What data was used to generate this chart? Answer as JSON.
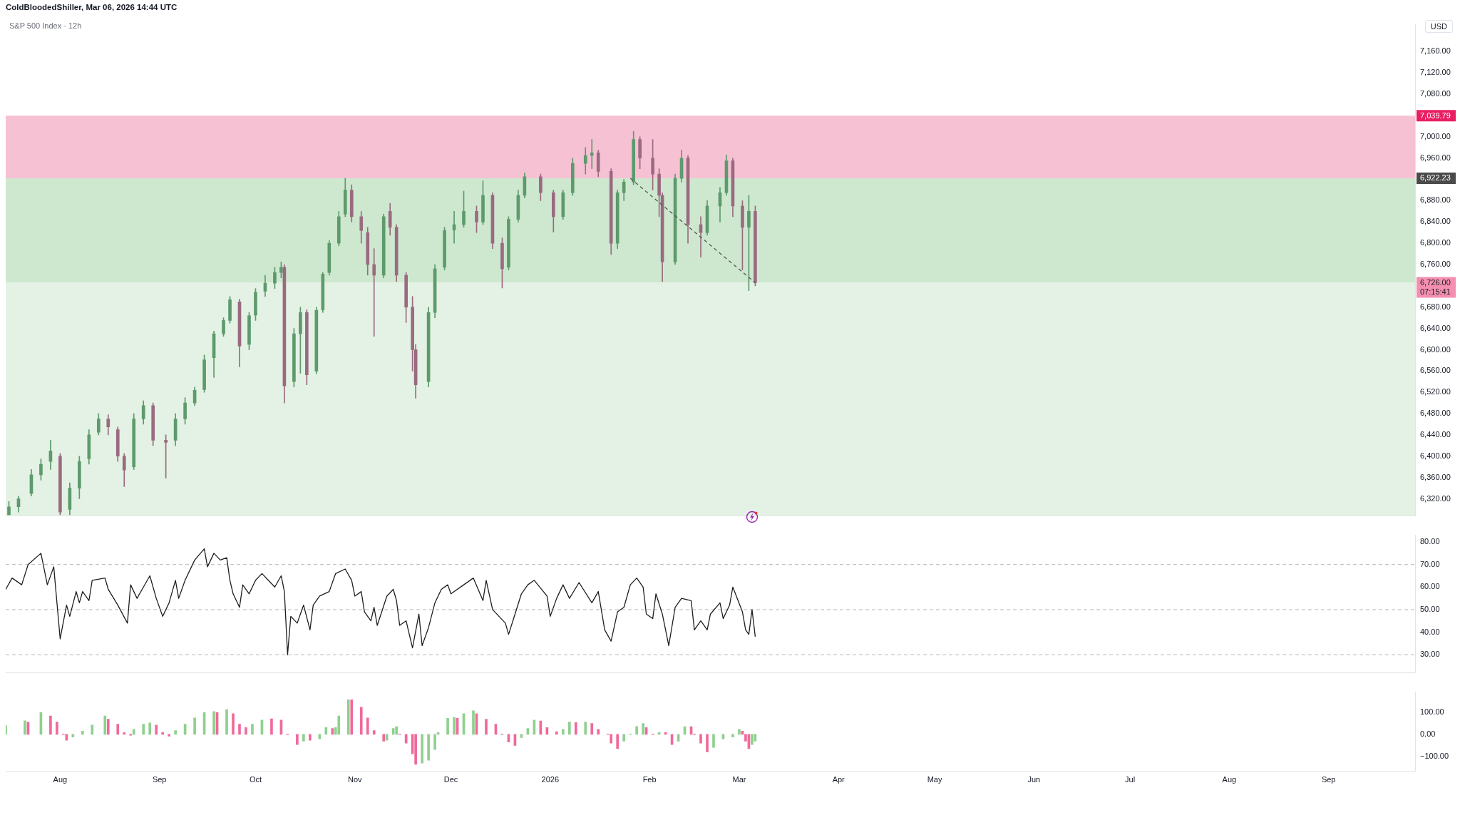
{
  "chart_data": [
    {
      "type": "candlestick",
      "subtitle": "S&P 500 Index · 12h",
      "ylabel": "USD",
      "annotations": [
        "ColdBloodedShiller, Mar 06, 2026 14:44 UTC"
      ],
      "x": [
        "2025-07-16",
        "2025-07-19",
        "2025-07-23",
        "2025-07-26",
        "2025-07-29",
        "2025-08-01",
        "2025-08-04",
        "2025-08-07",
        "2025-08-10",
        "2025-08-13",
        "2025-08-16",
        "2025-08-19",
        "2025-08-21",
        "2025-08-24",
        "2025-08-27",
        "2025-08-30",
        "2025-09-03",
        "2025-09-06",
        "2025-09-09",
        "2025-09-12",
        "2025-09-15",
        "2025-09-18",
        "2025-09-21",
        "2025-09-23",
        "2025-09-26",
        "2025-09-29",
        "2025-10-01",
        "2025-10-04",
        "2025-10-07",
        "2025-10-09",
        "2025-10-10",
        "2025-10-13",
        "2025-10-15",
        "2025-10-17",
        "2025-10-20",
        "2025-10-22",
        "2025-10-24",
        "2025-10-27",
        "2025-10-29",
        "2025-10-31",
        "2025-11-03",
        "2025-11-05",
        "2025-11-07",
        "2025-11-10",
        "2025-11-12",
        "2025-11-14",
        "2025-11-17",
        "2025-11-19",
        "2025-11-20",
        "2025-11-24",
        "2025-11-26",
        "2025-11-29",
        "2025-12-02",
        "2025-12-05",
        "2025-12-09",
        "2025-12-11",
        "2025-12-14",
        "2025-12-17",
        "2025-12-19",
        "2025-12-22",
        "2025-12-24",
        "2025-12-29",
        "2026-01-02",
        "2026-01-05",
        "2026-01-08",
        "2026-01-12",
        "2026-01-14",
        "2026-01-16",
        "2026-01-20",
        "2026-01-22",
        "2026-01-24",
        "2026-01-27",
        "2026-01-29",
        "2026-02-02",
        "2026-02-04",
        "2026-02-05",
        "2026-02-09",
        "2026-02-11",
        "2026-02-13",
        "2026-02-17",
        "2026-02-19",
        "2026-02-23",
        "2026-02-25",
        "2026-02-27",
        "2026-03-02",
        "2026-03-04",
        "2026-03-06"
      ],
      "ohlc": [
        [
          6290,
          6315,
          6290,
          6305
        ],
        [
          6305,
          6325,
          6295,
          6320
        ],
        [
          6330,
          6375,
          6325,
          6365
        ],
        [
          6365,
          6395,
          6355,
          6385
        ],
        [
          6390,
          6430,
          6375,
          6410
        ],
        [
          6400,
          6405,
          6290,
          6295
        ],
        [
          6300,
          6350,
          6290,
          6340
        ],
        [
          6340,
          6400,
          6320,
          6390
        ],
        [
          6395,
          6450,
          6385,
          6440
        ],
        [
          6445,
          6480,
          6440,
          6470
        ],
        [
          6470,
          6478,
          6440,
          6455
        ],
        [
          6450,
          6455,
          6390,
          6400
        ],
        [
          6400,
          6405,
          6343,
          6374
        ],
        [
          6380,
          6480,
          6375,
          6470
        ],
        [
          6470,
          6504,
          6460,
          6495
        ],
        [
          6495,
          6500,
          6420,
          6430
        ],
        [
          6430,
          6440,
          6359,
          6426
        ],
        [
          6430,
          6480,
          6420,
          6470
        ],
        [
          6470,
          6510,
          6460,
          6500
        ],
        [
          6500,
          6530,
          6495,
          6524
        ],
        [
          6525,
          6590,
          6520,
          6581
        ],
        [
          6585,
          6635,
          6548,
          6630
        ],
        [
          6630,
          6660,
          6625,
          6655
        ],
        [
          6655,
          6700,
          6650,
          6694
        ],
        [
          6690,
          6695,
          6568,
          6607
        ],
        [
          6610,
          6670,
          6600,
          6664
        ],
        [
          6665,
          6715,
          6655,
          6708
        ],
        [
          6710,
          6740,
          6700,
          6725
        ],
        [
          6725,
          6755,
          6715,
          6745
        ],
        [
          6745,
          6765,
          6735,
          6755
        ],
        [
          6755,
          6760,
          6500,
          6532
        ],
        [
          6540,
          6640,
          6530,
          6630
        ],
        [
          6630,
          6680,
          6556,
          6670
        ],
        [
          6670,
          6675,
          6534,
          6553
        ],
        [
          6560,
          6680,
          6555,
          6674
        ],
        [
          6675,
          6745,
          6670,
          6742
        ],
        [
          6745,
          6805,
          6740,
          6800
        ],
        [
          6800,
          6860,
          6795,
          6850
        ],
        [
          6855,
          6922,
          6850,
          6900
        ],
        [
          6900,
          6910,
          6840,
          6850
        ],
        [
          6850,
          6860,
          6800,
          6824
        ],
        [
          6820,
          6830,
          6740,
          6760
        ],
        [
          6760,
          6790,
          6625,
          6740
        ],
        [
          6740,
          6855,
          6735,
          6850
        ],
        [
          6860,
          6875,
          6815,
          6830
        ],
        [
          6830,
          6835,
          6728,
          6740
        ],
        [
          6740,
          6745,
          6651,
          6680
        ],
        [
          6680,
          6700,
          6560,
          6600
        ],
        [
          6600,
          6610,
          6509,
          6534
        ],
        [
          6540,
          6680,
          6530,
          6670
        ],
        [
          6670,
          6760,
          6660,
          6752
        ],
        [
          6755,
          6830,
          6750,
          6824
        ],
        [
          6825,
          6860,
          6800,
          6835
        ],
        [
          6835,
          6898,
          6830,
          6860
        ],
        [
          6860,
          6870,
          6820,
          6840
        ],
        [
          6840,
          6917,
          6835,
          6890
        ],
        [
          6890,
          6895,
          6790,
          6800
        ],
        [
          6800,
          6810,
          6716,
          6752
        ],
        [
          6755,
          6850,
          6750,
          6845
        ],
        [
          6845,
          6900,
          6840,
          6890
        ],
        [
          6890,
          6932,
          6885,
          6925
        ],
        [
          6925,
          6930,
          6880,
          6895
        ],
        [
          6895,
          6900,
          6821,
          6850
        ],
        [
          6850,
          6900,
          6845,
          6895
        ],
        [
          6895,
          6960,
          6890,
          6950
        ],
        [
          6950,
          6980,
          6930,
          6965
        ],
        [
          6965,
          6995,
          6940,
          6970
        ],
        [
          6970,
          6975,
          6925,
          6935
        ],
        [
          6935,
          6940,
          6779,
          6800
        ],
        [
          6800,
          6900,
          6790,
          6895
        ],
        [
          6895,
          6920,
          6880,
          6915
        ],
        [
          6915,
          7010,
          6910,
          6995
        ],
        [
          6995,
          7000,
          6940,
          6960
        ],
        [
          6960,
          6995,
          6900,
          6930
        ],
        [
          6930,
          6940,
          6850,
          6890
        ],
        [
          6890,
          6895,
          6728,
          6765
        ],
        [
          6765,
          6930,
          6760,
          6922
        ],
        [
          6922,
          6975,
          6915,
          6960
        ],
        [
          6960,
          6965,
          6800,
          6835
        ],
        [
          6835,
          6850,
          6774,
          6820
        ],
        [
          6820,
          6880,
          6815,
          6870
        ],
        [
          6870,
          6905,
          6840,
          6895
        ],
        [
          6895,
          6966,
          6890,
          6955
        ],
        [
          6955,
          6960,
          6850,
          6870
        ],
        [
          6870,
          6880,
          6750,
          6830
        ],
        [
          6830,
          6890,
          6711,
          6860
        ],
        [
          6860,
          6870,
          6720,
          6726
        ]
      ],
      "colors": [
        "#5d9a6c",
        "#5d9a6c",
        "#5d9a6c",
        "#5d9a6c",
        "#5d9a6c",
        "#9a6a80",
        "#5d9a6c",
        "#5d9a6c",
        "#5d9a6c",
        "#5d9a6c",
        "#9a6a80",
        "#9a6a80",
        "#9a6a80",
        "#5d9a6c",
        "#5d9a6c",
        "#9a6a80",
        "#9a6a80",
        "#5d9a6c",
        "#5d9a6c",
        "#5d9a6c",
        "#5d9a6c",
        "#5d9a6c",
        "#5d9a6c",
        "#5d9a6c",
        "#9a6a80",
        "#5d9a6c",
        "#5d9a6c",
        "#5d9a6c",
        "#5d9a6c",
        "#5d9a6c",
        "#9a6a80",
        "#5d9a6c",
        "#5d9a6c",
        "#9a6a80",
        "#5d9a6c",
        "#5d9a6c",
        "#5d9a6c",
        "#5d9a6c",
        "#5d9a6c",
        "#9a6a80",
        "#9a6a80",
        "#9a6a80",
        "#9a6a80",
        "#5d9a6c",
        "#9a6a80",
        "#9a6a80",
        "#9a6a80",
        "#9a6a80",
        "#9a6a80",
        "#5d9a6c",
        "#5d9a6c",
        "#5d9a6c",
        "#5d9a6c",
        "#5d9a6c",
        "#9a6a80",
        "#5d9a6c",
        "#9a6a80",
        "#9a6a80",
        "#5d9a6c",
        "#5d9a6c",
        "#5d9a6c",
        "#9a6a80",
        "#9a6a80",
        "#5d9a6c",
        "#5d9a6c",
        "#5d9a6c",
        "#5d9a6c",
        "#9a6a80",
        "#9a6a80",
        "#5d9a6c",
        "#5d9a6c",
        "#5d9a6c",
        "#9a6a80",
        "#9a6a80",
        "#9a6a80",
        "#9a6a80",
        "#5d9a6c",
        "#5d9a6c",
        "#9a6a80",
        "#9a6a80",
        "#5d9a6c",
        "#5d9a6c",
        "#5d9a6c",
        "#9a6a80",
        "#9a6a80",
        "#5d9a6c",
        "#9a6a80"
      ],
      "series": [
        {
          "type": "line",
          "x": [
            "2026-01-26",
            "2026-03-06"
          ],
          "values": [
            6922,
            6726
          ],
          "color": "#555555",
          "line_style": "dashed"
        }
      ],
      "bands": [
        {
          "axis": "y",
          "from": 6922.23,
          "to": 7039.79,
          "label": "7,039.79",
          "color": "#f7c1d4"
        },
        {
          "axis": "y",
          "from": 6726,
          "to": 6922.23,
          "label": "6,922.23",
          "color": "#cee8cf"
        },
        {
          "axis": "y",
          "from": 6288,
          "to": 6726,
          "label": "6,726.00\n07:15:41",
          "color": "#e3f2e4"
        }
      ],
      "xlim": [
        "2025-07-15",
        "2026-09-28"
      ],
      "ylim": [
        6288,
        7212
      ],
      "tick_labels": "y",
      "yticks": [
        {
          "value": 6320,
          "label": "6,320.00"
        },
        {
          "value": 6360,
          "label": "6,360.00"
        },
        {
          "value": 6400,
          "label": "6,400.00"
        },
        {
          "value": 6440,
          "label": "6,440.00"
        },
        {
          "value": 6480,
          "label": "6,480.00"
        },
        {
          "value": 6520,
          "label": "6,520.00"
        },
        {
          "value": 6560,
          "label": "6,560.00"
        },
        {
          "value": 6600,
          "label": "6,600.00"
        },
        {
          "value": 6640,
          "label": "6,640.00"
        },
        {
          "value": 6680,
          "label": "6,680.00"
        },
        {
          "value": 6760,
          "label": "6,760.00"
        },
        {
          "value": 6800,
          "label": "6,800.00"
        },
        {
          "value": 6840,
          "label": "6,840.00"
        },
        {
          "value": 6880,
          "label": "6,880.00"
        },
        {
          "value": 6960,
          "label": "6,960.00"
        },
        {
          "value": 7000,
          "label": "7,000.00"
        },
        {
          "value": 7080,
          "label": "7,080.00"
        },
        {
          "value": 7120,
          "label": "7,120.00"
        },
        {
          "value": 7160,
          "label": "7,160.00"
        }
      ]
    },
    {
      "type": "line",
      "color": "#1e1e1e",
      "x": [
        "2025-07-15",
        "2025-07-17",
        "2025-07-20",
        "2025-07-22",
        "2025-07-26",
        "2025-07-28",
        "2025-07-30",
        "2025-08-01",
        "2025-08-03",
        "2025-08-04",
        "2025-08-06",
        "2025-08-07",
        "2025-08-08",
        "2025-08-10",
        "2025-08-11",
        "2025-08-15",
        "2025-08-16",
        "2025-08-19",
        "2025-08-22",
        "2025-08-23",
        "2025-08-25",
        "2025-08-27",
        "2025-08-29",
        "2025-08-31",
        "2025-09-02",
        "2025-09-04",
        "2025-09-06",
        "2025-09-07",
        "2025-09-09",
        "2025-09-12",
        "2025-09-15",
        "2025-09-16",
        "2025-09-18",
        "2025-09-20",
        "2025-09-22",
        "2025-09-23",
        "2025-09-24",
        "2025-09-26",
        "2025-09-27",
        "2025-09-29",
        "2025-10-01",
        "2025-10-03",
        "2025-10-05",
        "2025-10-07",
        "2025-10-09",
        "2025-10-10",
        "2025-10-11",
        "2025-10-12",
        "2025-10-14",
        "2025-10-16",
        "2025-10-18",
        "2025-10-19",
        "2025-10-21",
        "2025-10-24",
        "2025-10-26",
        "2025-10-29",
        "2025-10-31",
        "2025-11-01",
        "2025-11-03",
        "2025-11-04",
        "2025-11-06",
        "2025-11-07",
        "2025-11-08",
        "2025-11-11",
        "2025-11-13",
        "2025-11-14",
        "2025-11-15",
        "2025-11-17",
        "2025-11-19",
        "2025-11-21",
        "2025-11-22",
        "2025-11-24",
        "2025-11-26",
        "2025-11-28",
        "2025-11-30",
        "2025-12-01",
        "2025-12-05",
        "2025-12-08",
        "2025-12-11",
        "2025-12-12",
        "2025-12-14",
        "2025-12-18",
        "2025-12-19",
        "2025-12-21",
        "2025-12-23",
        "2025-12-25",
        "2025-12-27",
        "2025-12-31",
        "2026-01-01",
        "2026-01-03",
        "2026-01-05",
        "2026-01-07",
        "2026-01-10",
        "2026-01-14",
        "2026-01-16",
        "2026-01-18",
        "2026-01-20",
        "2026-01-22",
        "2026-01-24",
        "2026-01-26",
        "2026-01-28",
        "2026-01-30",
        "2026-01-31",
        "2026-02-02",
        "2026-02-03",
        "2026-02-05",
        "2026-02-07",
        "2026-02-09",
        "2026-02-11",
        "2026-02-14",
        "2026-02-15",
        "2026-02-17",
        "2026-02-19",
        "2026-02-20",
        "2026-02-23",
        "2026-02-24",
        "2026-02-26",
        "2026-02-27",
        "2026-03-02",
        "2026-03-03",
        "2026-03-04",
        "2026-03-05",
        "2026-03-06"
      ],
      "values": [
        59,
        64,
        61,
        70,
        75,
        61,
        69,
        37,
        52,
        47,
        58,
        53,
        58,
        54,
        63,
        64,
        59,
        52,
        44,
        61,
        55,
        60,
        65,
        55,
        47,
        53,
        63,
        55,
        63,
        72,
        77,
        69,
        75,
        72,
        73,
        63,
        57,
        51,
        61,
        57,
        63,
        66,
        63,
        60,
        65,
        58,
        30,
        47,
        44,
        52,
        41,
        52,
        56,
        58,
        66,
        68,
        63,
        56,
        58,
        49,
        45,
        51,
        43,
        56,
        59,
        54,
        43,
        45,
        33,
        48,
        34,
        42,
        53,
        59,
        61,
        57,
        61,
        64,
        54,
        63,
        50,
        44,
        39,
        48,
        57,
        61,
        63,
        56,
        47,
        55,
        61,
        55,
        62,
        53,
        58,
        41,
        36,
        49,
        51,
        61,
        64,
        60,
        48,
        46,
        57,
        48,
        34,
        51,
        55,
        54,
        41,
        45,
        41,
        48,
        53,
        46,
        52,
        60,
        49,
        41,
        39,
        50,
        38
      ],
      "xlim": [
        "2025-07-15",
        "2026-09-28"
      ],
      "ylim": [
        22,
        83
      ],
      "tick_labels": "y",
      "yticks": [
        {
          "value": 30,
          "label": "30.00"
        },
        {
          "value": 40,
          "label": "40.00"
        },
        {
          "value": 50,
          "label": "50.00"
        },
        {
          "value": 60,
          "label": "60.00"
        },
        {
          "value": 70,
          "label": "70.00"
        },
        {
          "value": 80,
          "label": "80.00"
        }
      ],
      "ref_lines": [
        {
          "axis": "y",
          "value": 70,
          "color": "#b8b8b8",
          "line_style": "dashed"
        },
        {
          "axis": "y",
          "value": 50,
          "color": "#b8b8b8",
          "line_style": "dashed"
        },
        {
          "axis": "y",
          "value": 30,
          "color": "#b8b8b8",
          "line_style": "dashed"
        }
      ]
    },
    {
      "type": "bar",
      "x": [
        "2025-07-15",
        "2025-07-21",
        "2025-07-22",
        "2025-07-26",
        "2025-07-29",
        "2025-07-31",
        "2025-08-02",
        "2025-08-03",
        "2025-08-05",
        "2025-08-08",
        "2025-08-11",
        "2025-08-15",
        "2025-08-16",
        "2025-08-19",
        "2025-08-21",
        "2025-08-23",
        "2025-08-24",
        "2025-08-27",
        "2025-08-29",
        "2025-08-31",
        "2025-09-02",
        "2025-09-04",
        "2025-09-06",
        "2025-09-09",
        "2025-09-12",
        "2025-09-15",
        "2025-09-18",
        "2025-09-19",
        "2025-09-22",
        "2025-09-24",
        "2025-09-26",
        "2025-09-28",
        "2025-09-30",
        "2025-10-03",
        "2025-10-06",
        "2025-10-09",
        "2025-10-11",
        "2025-10-14",
        "2025-10-16",
        "2025-10-18",
        "2025-10-21",
        "2025-10-23",
        "2025-10-25",
        "2025-10-26",
        "2025-10-27",
        "2025-10-30",
        "2025-10-31",
        "2025-11-03",
        "2025-11-05",
        "2025-11-07",
        "2025-11-10",
        "2025-11-11",
        "2025-11-13",
        "2025-11-14",
        "2025-11-15",
        "2025-11-17",
        "2025-11-19",
        "2025-11-20",
        "2025-11-22",
        "2025-11-24",
        "2025-11-26",
        "2025-11-27",
        "2025-11-30",
        "2025-12-02",
        "2025-12-03",
        "2025-12-05",
        "2025-12-08",
        "2025-12-09",
        "2025-12-12",
        "2025-12-15",
        "2025-12-17",
        "2025-12-19",
        "2025-12-21",
        "2025-12-23",
        "2025-12-25",
        "2025-12-27",
        "2025-12-29",
        "2025-12-31",
        "2026-01-03",
        "2026-01-05",
        "2026-01-07",
        "2026-01-09",
        "2026-01-12",
        "2026-01-14",
        "2026-01-16",
        "2026-01-19",
        "2026-01-20",
        "2026-01-22",
        "2026-01-24",
        "2026-01-26",
        "2026-01-28",
        "2026-01-30",
        "2026-01-31",
        "2026-02-02",
        "2026-02-04",
        "2026-02-06",
        "2026-02-08",
        "2026-02-10",
        "2026-02-12",
        "2026-02-14",
        "2026-02-15",
        "2026-02-17",
        "2026-02-19",
        "2026-02-21",
        "2026-02-24",
        "2026-02-27",
        "2026-03-01",
        "2026-03-02",
        "2026-03-03",
        "2026-03-04",
        "2026-03-05",
        "2026-03-06"
      ],
      "values": [
        40,
        62,
        56,
        100,
        84,
        56,
        2,
        -27,
        -12,
        15,
        42,
        84,
        69,
        46,
        8,
        -4,
        23,
        46,
        52,
        42,
        8,
        -8,
        17,
        46,
        75,
        100,
        104,
        100,
        113,
        94,
        46,
        31,
        46,
        65,
        71,
        65,
        2,
        -46,
        -31,
        -27,
        -20,
        31,
        27,
        31,
        84,
        157,
        157,
        123,
        75,
        17,
        -31,
        -27,
        27,
        35,
        2,
        -40,
        -88,
        -136,
        -130,
        -117,
        -69,
        8,
        73,
        77,
        73,
        94,
        107,
        94,
        69,
        46,
        2,
        -35,
        -50,
        -15,
        27,
        65,
        61,
        31,
        12,
        23,
        56,
        54,
        56,
        50,
        23,
        2,
        -40,
        -65,
        -31,
        2,
        36,
        50,
        31,
        2,
        8,
        8,
        -46,
        -31,
        35,
        35,
        2,
        -40,
        -79,
        -59,
        -21,
        -12,
        23,
        15,
        -31,
        -65,
        -46,
        -31
      ],
      "colors": [
        "#8fd08e",
        "#8fd08e",
        "#f0699b",
        "#8fd08e",
        "#f0699b",
        "#f0699b",
        "#f0699b",
        "#f0699b",
        "#8fd08e",
        "#8fd08e",
        "#8fd08e",
        "#8fd08e",
        "#f0699b",
        "#f0699b",
        "#f0699b",
        "#f0699b",
        "#8fd08e",
        "#8fd08e",
        "#8fd08e",
        "#f0699b",
        "#f0699b",
        "#f0699b",
        "#8fd08e",
        "#8fd08e",
        "#8fd08e",
        "#8fd08e",
        "#8fd08e",
        "#f0699b",
        "#8fd08e",
        "#f0699b",
        "#f0699b",
        "#f0699b",
        "#8fd08e",
        "#8fd08e",
        "#f0699b",
        "#f0699b",
        "#f0699b",
        "#f0699b",
        "#8fd08e",
        "#f0699b",
        "#8fd08e",
        "#8fd08e",
        "#f0699b",
        "#8fd08e",
        "#8fd08e",
        "#8fd08e",
        "#f0699b",
        "#f0699b",
        "#f0699b",
        "#f0699b",
        "#f0699b",
        "#8fd08e",
        "#8fd08e",
        "#8fd08e",
        "#f0699b",
        "#f0699b",
        "#f0699b",
        "#f0699b",
        "#8fd08e",
        "#8fd08e",
        "#8fd08e",
        "#8fd08e",
        "#8fd08e",
        "#8fd08e",
        "#f0699b",
        "#8fd08e",
        "#8fd08e",
        "#f0699b",
        "#f0699b",
        "#f0699b",
        "#f0699b",
        "#f0699b",
        "#f0699b",
        "#8fd08e",
        "#8fd08e",
        "#8fd08e",
        "#f0699b",
        "#f0699b",
        "#f0699b",
        "#8fd08e",
        "#8fd08e",
        "#f0699b",
        "#8fd08e",
        "#f0699b",
        "#f0699b",
        "#f0699b",
        "#f0699b",
        "#f0699b",
        "#8fd08e",
        "#8fd08e",
        "#8fd08e",
        "#8fd08e",
        "#f0699b",
        "#f0699b",
        "#8fd08e",
        "#f0699b",
        "#f0699b",
        "#8fd08e",
        "#8fd08e",
        "#f0699b",
        "#f0699b",
        "#f0699b",
        "#f0699b",
        "#8fd08e",
        "#8fd08e",
        "#8fd08e",
        "#8fd08e",
        "#f0699b",
        "#f0699b",
        "#f0699b",
        "#8fd08e",
        "#8fd08e"
      ],
      "xlim": [
        "2025-07-15",
        "2026-09-28"
      ],
      "ylim": [
        -168,
        192
      ],
      "yticks": [
        {
          "value": -100,
          "label": "−100.00"
        },
        {
          "value": 0,
          "label": "0.00"
        },
        {
          "value": 100,
          "label": "100.00"
        }
      ],
      "xticks": [
        {
          "value": "2025-08-01",
          "label": "Aug"
        },
        {
          "value": "2025-09-01",
          "label": "Sep"
        },
        {
          "value": "2025-10-01",
          "label": "Oct"
        },
        {
          "value": "2025-11-01",
          "label": "Nov"
        },
        {
          "value": "2025-12-01",
          "label": "Dec"
        },
        {
          "value": "2026-01-01",
          "label": "2026"
        },
        {
          "value": "2026-02-01",
          "label": "Feb"
        },
        {
          "value": "2026-03-01",
          "label": "Mar"
        },
        {
          "value": "2026-04-01",
          "label": "Apr"
        },
        {
          "value": "2026-05-01",
          "label": "May"
        },
        {
          "value": "2026-06-01",
          "label": "Jun"
        },
        {
          "value": "2026-07-01",
          "label": "Jul"
        },
        {
          "value": "2026-08-01",
          "label": "Aug"
        },
        {
          "value": "2026-09-01",
          "label": "Sep"
        }
      ]
    }
  ]
}
